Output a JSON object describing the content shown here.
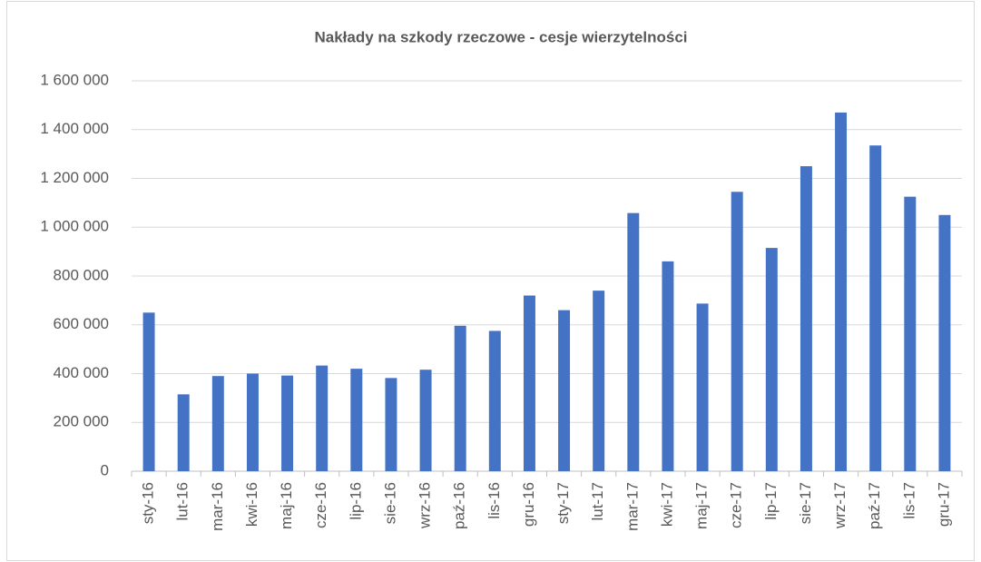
{
  "chart_data": {
    "type": "bar",
    "title": "Nakłady na szkody rzeczowe  - cesje wierzytelności",
    "categories": [
      "sty-16",
      "lut-16",
      "mar-16",
      "kwi-16",
      "maj-16",
      "cze-16",
      "lip-16",
      "sie-16",
      "wrz-16",
      "paź-16",
      "lis-16",
      "gru-16",
      "sty-17",
      "lut-17",
      "mar-17",
      "kwi-17",
      "maj-17",
      "cze-17",
      "lip-17",
      "sie-17",
      "wrz-17",
      "paź-17",
      "lis-17",
      "gru-17"
    ],
    "values": [
      650000,
      315000,
      390000,
      400000,
      392000,
      433000,
      420000,
      382000,
      416000,
      596000,
      575000,
      720000,
      660000,
      740000,
      1058000,
      860000,
      687000,
      1145000,
      915000,
      1250000,
      1470000,
      1335000,
      1125000,
      1050000
    ],
    "color": "#4472c4",
    "ylim": [
      0,
      1600000
    ],
    "yticks": [
      0,
      {
        "value": 200000,
        "label": "200 000"
      },
      {
        "value": 400000,
        "label": "400 000"
      },
      {
        "value": 600000,
        "label": "600 000"
      },
      {
        "value": 800000,
        "label": "800 000"
      },
      {
        "value": 1000000,
        "label": "1 000 000"
      },
      {
        "value": 1200000,
        "label": "1 200 000"
      },
      {
        "value": 1400000,
        "label": "1 400 000"
      },
      {
        "value": 1600000,
        "label": "1 600 000"
      }
    ],
    "grid": true
  }
}
